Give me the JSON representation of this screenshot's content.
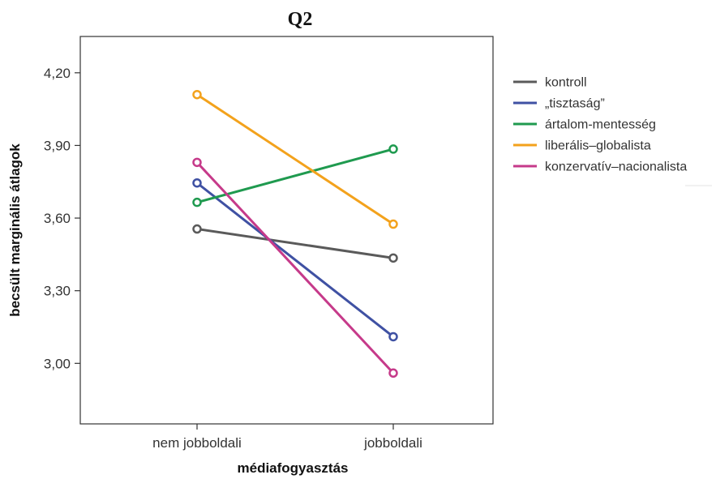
{
  "chart_data": {
    "type": "line",
    "title": "Q2",
    "xlabel": "médiafogyasztás",
    "ylabel": "becsült marginális átlagok",
    "categories": [
      "nem jobboldali",
      "jobboldali"
    ],
    "ylim": [
      2.75,
      4.35
    ],
    "yticks": [
      4.2,
      3.9,
      3.6,
      3.3,
      3.0
    ],
    "ytick_labels": [
      "4,20",
      "3,90",
      "3,60",
      "3,30",
      "3,00"
    ],
    "legend_position": "right",
    "grid": false,
    "series": [
      {
        "name": "kontroll",
        "color": "#5a5a5a",
        "values": [
          3.555,
          3.435
        ]
      },
      {
        "name": "„tisztaság”",
        "color": "#3f51a3",
        "values": [
          3.745,
          3.11
        ]
      },
      {
        "name": "ártalom-mentesség",
        "color": "#1f9a4f",
        "values": [
          3.665,
          3.885
        ]
      },
      {
        "name": "liberális–globalista",
        "color": "#f3a21c",
        "values": [
          4.11,
          3.575
        ]
      },
      {
        "name": "konzervatív–nacionalista",
        "color": "#c63a8a",
        "values": [
          3.83,
          2.96
        ]
      }
    ]
  }
}
